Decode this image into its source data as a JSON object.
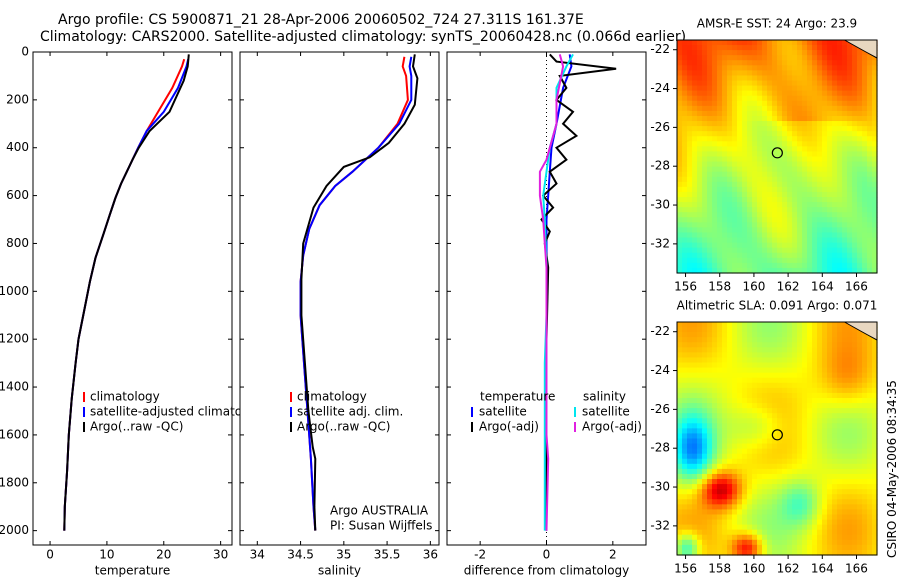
{
  "header": {
    "line1": "Argo profile: CS 5900871_21 28-Apr-2006 20060502_724 27.311S 161.37E",
    "line2": "Climatology: CARS2000. Satellite-adjusted climatology: synTS_20060428.nc (0.066d earlier)"
  },
  "stamp": "CSIRO 04-May-2006 08:34:35",
  "colors": {
    "climatology": "#ff0000",
    "satellite": "#0000ff",
    "argo": "#000000",
    "sal_satellite": "#00e5ee",
    "sal_argo": "#e020e0"
  },
  "chart_data": [
    {
      "type": "line",
      "id": "temperature",
      "xlabel": "temperature",
      "ylabel": "",
      "xlim": [
        -3,
        32
      ],
      "ylim": [
        2060,
        0
      ],
      "y_reversed": true,
      "xticks": [
        0,
        10,
        20,
        30
      ],
      "yticks": [
        0,
        200,
        400,
        600,
        800,
        1000,
        1200,
        1400,
        1600,
        1800,
        2000
      ],
      "legend": [
        "climatology",
        "satellite-adjusted climatology",
        "Argo(..raw -QC)"
      ],
      "series": [
        {
          "name": "climatology",
          "color": "#ff0000",
          "x": [
            23.6,
            23.2,
            21.5,
            19.0,
            17.0,
            15.5,
            14.5,
            13.5,
            12.5,
            11.5,
            10.5,
            9.4,
            8.0,
            7.0,
            6.0,
            5.0,
            4.5,
            3.8,
            3.3,
            3.0,
            2.6,
            2.5
          ],
          "y": [
            30,
            60,
            150,
            250,
            330,
            400,
            450,
            500,
            550,
            610,
            680,
            760,
            860,
            960,
            1080,
            1200,
            1300,
            1450,
            1600,
            1750,
            1900,
            2000
          ]
        },
        {
          "name": "satellite-adjusted climatology",
          "color": "#0000ff",
          "x": [
            24.3,
            24.0,
            22.5,
            20.0,
            17.0,
            15.5,
            14.5,
            13.5,
            12.5,
            11.5,
            10.5,
            9.4,
            8.0,
            7.0,
            6.0,
            5.0,
            4.5,
            3.8,
            3.3,
            3.0,
            2.6,
            2.5
          ],
          "y": [
            30,
            60,
            150,
            250,
            330,
            400,
            450,
            500,
            550,
            610,
            680,
            760,
            860,
            960,
            1080,
            1200,
            1300,
            1450,
            1600,
            1750,
            1900,
            2000
          ]
        },
        {
          "name": "Argo(..raw -QC)",
          "color": "#000000",
          "x": [
            24.4,
            24.2,
            23.5,
            21.0,
            17.5,
            15.6,
            14.5,
            13.5,
            12.5,
            11.5,
            10.5,
            9.4,
            8.0,
            7.0,
            6.0,
            5.0,
            4.5,
            3.8,
            3.3,
            3.0,
            2.6,
            2.5
          ],
          "y": [
            10,
            60,
            120,
            250,
            330,
            400,
            450,
            500,
            550,
            610,
            680,
            760,
            860,
            960,
            1080,
            1200,
            1300,
            1450,
            1600,
            1750,
            1900,
            2000
          ]
        }
      ]
    },
    {
      "type": "line",
      "id": "salinity",
      "xlabel": "salinity",
      "ylabel": "",
      "xlim": [
        33.8,
        36.1
      ],
      "ylim": [
        2060,
        0
      ],
      "y_reversed": true,
      "xticks": [
        34,
        34.5,
        35,
        35.5,
        36
      ],
      "yticks": [
        0,
        200,
        400,
        600,
        800,
        1000,
        1200,
        1400,
        1600,
        1800,
        2000
      ],
      "legend": [
        "climatology",
        "satellite adj. clim.",
        "Argo(..raw -QC)"
      ],
      "annotation": [
        "Argo AUSTRALIA",
        "PI: Susan Wijffels"
      ],
      "series": [
        {
          "name": "climatology",
          "color": "#ff0000",
          "x": [
            35.7,
            35.68,
            35.72,
            35.74,
            35.62,
            35.4,
            35.1,
            34.9,
            34.72,
            34.6,
            34.53,
            34.5,
            34.5,
            34.54,
            34.58,
            34.62,
            34.65,
            34.67
          ],
          "y": [
            20,
            60,
            100,
            200,
            300,
            400,
            500,
            560,
            640,
            740,
            850,
            960,
            1100,
            1300,
            1500,
            1700,
            1900,
            2000
          ]
        },
        {
          "name": "satellite adj. clim.",
          "color": "#0000ff",
          "x": [
            35.78,
            35.76,
            35.78,
            35.78,
            35.64,
            35.4,
            35.1,
            34.9,
            34.72,
            34.6,
            34.53,
            34.5,
            34.5,
            34.54,
            34.58,
            34.62,
            34.65,
            34.67
          ],
          "y": [
            20,
            60,
            100,
            200,
            300,
            400,
            500,
            560,
            640,
            740,
            850,
            960,
            1100,
            1300,
            1500,
            1700,
            1900,
            2000
          ]
        },
        {
          "name": "Argo(..raw -QC)",
          "color": "#000000",
          "x": [
            35.82,
            35.8,
            35.85,
            35.82,
            35.7,
            35.52,
            35.3,
            35.0,
            34.8,
            34.65,
            34.53,
            34.51,
            34.51,
            34.55,
            34.59,
            34.64,
            34.67,
            34.66,
            34.67
          ],
          "y": [
            10,
            60,
            110,
            220,
            300,
            380,
            440,
            480,
            560,
            650,
            800,
            950,
            1100,
            1300,
            1500,
            1650,
            1700,
            1900,
            2000
          ]
        }
      ]
    },
    {
      "type": "line",
      "id": "difference",
      "xlabel": "difference from climatology",
      "ylabel": "",
      "xlim": [
        -3,
        3
      ],
      "ylim": [
        2060,
        0
      ],
      "y_reversed": true,
      "xticks": [
        -2,
        0,
        2
      ],
      "yticks": [
        0,
        200,
        400,
        600,
        800,
        1000,
        1200,
        1400,
        1600,
        1800,
        2000
      ],
      "legend_left": [
        "temperature",
        "satellite",
        "Argo(-adj)"
      ],
      "legend_right": [
        "salinity",
        "satellite",
        "Argo(-adj)"
      ],
      "series": [
        {
          "name": "temperature satellite",
          "color": "#0000ff",
          "x": [
            0.7,
            0.75,
            0.5,
            0.3,
            0.15,
            0.1,
            0.05,
            0.0,
            0.0,
            0.0,
            0.0,
            0.0
          ],
          "y": [
            10,
            60,
            150,
            300,
            400,
            500,
            600,
            700,
            900,
            1200,
            1600,
            2000
          ]
        },
        {
          "name": "temperature Argo(-adj)",
          "color": "#000000",
          "x": [
            0.1,
            0.3,
            2.1,
            0.4,
            0.6,
            0.3,
            0.8,
            0.5,
            0.9,
            0.3,
            0.6,
            0.1,
            0.3,
            -0.1,
            0.2,
            -0.15,
            0.1,
            -0.05,
            0.05,
            0.0,
            0.0,
            0.0
          ],
          "y": [
            10,
            40,
            70,
            100,
            150,
            200,
            250,
            300,
            350,
            400,
            450,
            500,
            550,
            600,
            650,
            700,
            750,
            800,
            900,
            1200,
            1600,
            2000
          ]
        },
        {
          "name": "salinity satellite",
          "color": "#00e5ee",
          "x": [
            0.8,
            0.6,
            0.3,
            0.3,
            0.1,
            0.0,
            -0.1,
            -0.05,
            0.0,
            0.0,
            -0.05,
            -0.05,
            -0.05
          ],
          "y": [
            10,
            60,
            150,
            300,
            400,
            500,
            600,
            700,
            900,
            1100,
            1300,
            1600,
            2000
          ]
        },
        {
          "name": "salinity Argo(-adj)",
          "color": "#e020e0",
          "x": [
            0.4,
            0.5,
            0.3,
            0.3,
            0.0,
            -0.2,
            -0.2,
            -0.1,
            -0.05,
            0.0,
            0.0,
            0.05,
            0.0
          ],
          "y": [
            10,
            60,
            200,
            300,
            450,
            500,
            600,
            700,
            800,
            900,
            1600,
            1700,
            2000
          ]
        }
      ]
    },
    {
      "type": "heatmap",
      "id": "sst_map",
      "title": "AMSR-E SST: 24 Argo: 23.9",
      "xlim": [
        155.5,
        167.2
      ],
      "ylim": [
        -33.5,
        -21.5
      ],
      "xticks": [
        156,
        158,
        160,
        162,
        164,
        166
      ],
      "yticks": [
        -22,
        -24,
        -26,
        -28,
        -30,
        -32
      ],
      "marker": {
        "lon": 161.37,
        "lat": -27.311
      }
    },
    {
      "type": "heatmap",
      "id": "sla_map",
      "title": "Altimetric SLA: 0.091 Argo: 0.071",
      "xlim": [
        155.5,
        167.2
      ],
      "ylim": [
        -33.5,
        -21.5
      ],
      "xticks": [
        156,
        158,
        160,
        162,
        164,
        166
      ],
      "yticks": [
        -22,
        -24,
        -26,
        -28,
        -30,
        -32
      ],
      "marker": {
        "lon": 161.37,
        "lat": -27.311
      }
    }
  ]
}
